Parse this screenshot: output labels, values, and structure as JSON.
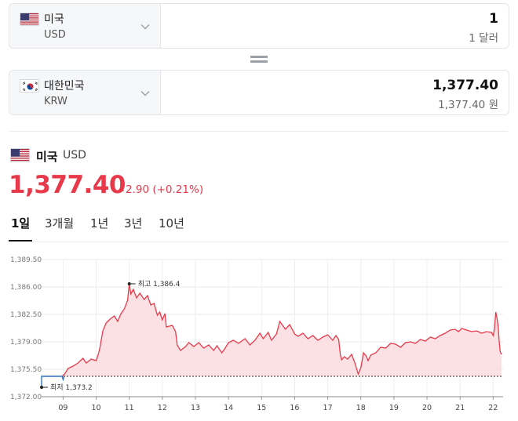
{
  "converter": {
    "from": {
      "country": "미국",
      "code": "USD",
      "amount": "1",
      "amount_text": "1 달러"
    },
    "to": {
      "country": "대한민국",
      "code": "KRW",
      "amount": "1,377.40",
      "amount_text": "1,377.40 원"
    }
  },
  "summary": {
    "country": "미국",
    "code": "USD",
    "rate": "1,377.40",
    "change": "2.90 (+0.21%)"
  },
  "tabs": [
    "1일",
    "3개월",
    "1년",
    "3년",
    "10년"
  ],
  "active_tab": "1일",
  "colors": {
    "accent_red": "#e8394a",
    "low_blue": "#2d74c4",
    "fill": "#fbdcdf"
  },
  "chart_data": {
    "type": "area",
    "y_ticks": [
      "1,389.50",
      "1,386.00",
      "1,382.50",
      "1,379.00",
      "1,375.50",
      "1,372.00"
    ],
    "x_ticks": [
      "09",
      "10",
      "11",
      "12",
      "13",
      "14",
      "15",
      "16",
      "17",
      "18",
      "19",
      "20",
      "21",
      "22"
    ],
    "ylim": [
      1372.0,
      1389.5
    ],
    "xlim": [
      8.35,
      22.3
    ],
    "grid": true,
    "baseline": 1374.6,
    "high_label": "최고 1,386.4",
    "high": {
      "x": 11.0,
      "y": 1386.4
    },
    "low_label": "최저 1,373.2",
    "low": {
      "x": 8.35,
      "y": 1373.2
    },
    "low_segment": [
      [
        8.35,
        1373.2
      ],
      [
        8.35,
        1374.6
      ],
      [
        8.97,
        1374.6
      ],
      [
        9.0,
        1374.2
      ],
      [
        9.03,
        1374.6
      ]
    ],
    "series": [
      {
        "values": [
          [
            8.97,
            1374.6
          ],
          [
            9.05,
            1374.9
          ],
          [
            9.15,
            1375.6
          ],
          [
            9.3,
            1375.9
          ],
          [
            9.45,
            1376.3
          ],
          [
            9.6,
            1376.9
          ],
          [
            9.7,
            1376.3
          ],
          [
            9.85,
            1376.8
          ],
          [
            10.0,
            1376.6
          ],
          [
            10.07,
            1377.5
          ],
          [
            10.12,
            1378.4
          ],
          [
            10.2,
            1380.4
          ],
          [
            10.3,
            1381.4
          ],
          [
            10.42,
            1381.9
          ],
          [
            10.55,
            1382.3
          ],
          [
            10.65,
            1381.6
          ],
          [
            10.75,
            1382.6
          ],
          [
            10.85,
            1383.2
          ],
          [
            10.95,
            1384.3
          ],
          [
            11.0,
            1386.4
          ],
          [
            11.05,
            1385.1
          ],
          [
            11.12,
            1385.7
          ],
          [
            11.22,
            1384.6
          ],
          [
            11.32,
            1385.2
          ],
          [
            11.45,
            1384.4
          ],
          [
            11.55,
            1384.9
          ],
          [
            11.65,
            1383.7
          ],
          [
            11.75,
            1383.9
          ],
          [
            11.85,
            1382.4
          ],
          [
            11.92,
            1382.8
          ],
          [
            12.0,
            1381.8
          ],
          [
            12.08,
            1382.6
          ],
          [
            12.12,
            1380.9
          ],
          [
            12.3,
            1381.1
          ],
          [
            12.4,
            1380.3
          ],
          [
            12.45,
            1378.6
          ],
          [
            12.55,
            1377.9
          ],
          [
            12.7,
            1378.4
          ],
          [
            12.8,
            1378.9
          ],
          [
            12.95,
            1378.4
          ],
          [
            13.1,
            1378.9
          ],
          [
            13.25,
            1378.2
          ],
          [
            13.4,
            1378.6
          ],
          [
            13.55,
            1377.9
          ],
          [
            13.65,
            1378.5
          ],
          [
            13.8,
            1377.6
          ],
          [
            13.9,
            1378.2
          ],
          [
            14.0,
            1378.9
          ],
          [
            14.15,
            1379.2
          ],
          [
            14.3,
            1378.8
          ],
          [
            14.5,
            1379.4
          ],
          [
            14.65,
            1378.6
          ],
          [
            14.8,
            1379.2
          ],
          [
            14.95,
            1380.1
          ],
          [
            15.05,
            1379.4
          ],
          [
            15.2,
            1380.2
          ],
          [
            15.3,
            1379.2
          ],
          [
            15.45,
            1380.0
          ],
          [
            15.55,
            1381.6
          ],
          [
            15.62,
            1381.2
          ],
          [
            15.72,
            1380.6
          ],
          [
            15.85,
            1381.2
          ],
          [
            16.0,
            1380.0
          ],
          [
            16.1,
            1379.7
          ],
          [
            16.25,
            1380.1
          ],
          [
            16.4,
            1379.4
          ],
          [
            16.55,
            1379.8
          ],
          [
            16.7,
            1379.2
          ],
          [
            16.85,
            1379.6
          ],
          [
            17.0,
            1379.9
          ],
          [
            17.15,
            1379.2
          ],
          [
            17.25,
            1379.8
          ],
          [
            17.33,
            1379.3
          ],
          [
            17.38,
            1377.4
          ],
          [
            17.42,
            1376.7
          ],
          [
            17.5,
            1377.1
          ],
          [
            17.6,
            1376.8
          ],
          [
            17.72,
            1377.4
          ],
          [
            17.82,
            1376.3
          ],
          [
            17.92,
            1374.9
          ],
          [
            18.0,
            1375.7
          ],
          [
            18.08,
            1377.6
          ],
          [
            18.16,
            1377.2
          ],
          [
            18.22,
            1376.6
          ],
          [
            18.3,
            1377.3
          ],
          [
            18.45,
            1377.6
          ],
          [
            18.6,
            1378.3
          ],
          [
            18.75,
            1378.2
          ],
          [
            18.9,
            1378.8
          ],
          [
            19.05,
            1378.7
          ],
          [
            19.2,
            1378.3
          ],
          [
            19.35,
            1378.9
          ],
          [
            19.5,
            1379.0
          ],
          [
            19.65,
            1378.8
          ],
          [
            19.8,
            1379.3
          ],
          [
            19.95,
            1379.1
          ],
          [
            20.1,
            1379.6
          ],
          [
            20.25,
            1379.4
          ],
          [
            20.4,
            1379.8
          ],
          [
            20.55,
            1380.1
          ],
          [
            20.7,
            1380.5
          ],
          [
            20.85,
            1380.6
          ],
          [
            20.95,
            1380.3
          ],
          [
            21.05,
            1380.7
          ],
          [
            21.2,
            1380.5
          ],
          [
            21.35,
            1380.3
          ],
          [
            21.5,
            1380.4
          ],
          [
            21.65,
            1380.1
          ],
          [
            21.8,
            1380.3
          ],
          [
            21.95,
            1380.2
          ],
          [
            22.0,
            1379.8
          ],
          [
            22.04,
            1380.6
          ],
          [
            22.08,
            1382.8
          ],
          [
            22.12,
            1381.9
          ],
          [
            22.15,
            1381.0
          ],
          [
            22.18,
            1379.2
          ],
          [
            22.21,
            1377.8
          ],
          [
            22.25,
            1377.4
          ]
        ]
      }
    ]
  }
}
